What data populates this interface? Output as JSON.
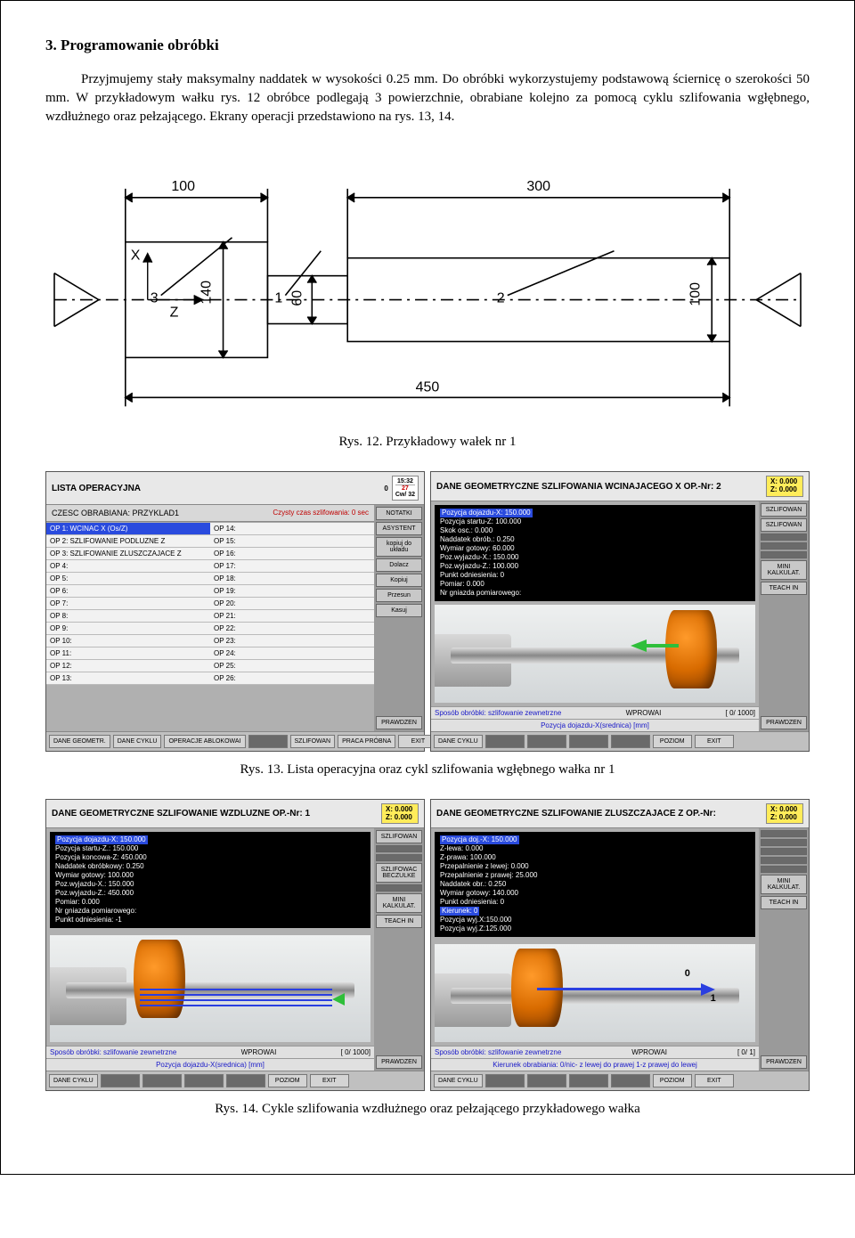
{
  "heading": "3. Programowanie obróbki",
  "paragraph": "Przyjmujemy stały maksymalny naddatek w wysokości 0.25 mm. Do obróbki wykorzystujemy podstawową ściernicę o szerokości 50 mm. W przykładowym wałku rys. 12 obróbce podlegają 3 powierzchnie, obrabiane kolejno za pomocą cyklu szlifowania wgłębnego, wzdłużnego oraz pełzającego. Ekrany operacji przedstawiono na rys. 13, 14.",
  "fig12": {
    "caption": "Rys. 12. Przykładowy wałek nr 1",
    "dims": {
      "L1": "100",
      "L2": "300",
      "D1": "140",
      "D2": "60",
      "D3": "100",
      "Ltotal": "450",
      "labels": [
        "1",
        "2",
        "3"
      ],
      "axes": [
        "X",
        "Z"
      ]
    },
    "stroke": "#000000"
  },
  "fig13": {
    "caption": "Rys. 13. Lista operacyjna oraz cykl szlifowania wgłębnego wałka nr 1",
    "left": {
      "title": "LISTA OPERACYJNA",
      "date_day": "27",
      "date_time": "15:32",
      "date_cw": "Cw/ 32",
      "part_label": "CZESC OBRABIANA: PRZYKLAD1",
      "red_note": "Czysty czas szlifowania: 0 sec",
      "ops_left": [
        "OP 1: WCINAC X (Os/Z)",
        "OP 2: SZLIFOWANIE PODLUZNE Z",
        "OP 3: SZLIFOWANIE ZLUSZCZAJACE Z",
        "OP 4:",
        "OP 5:",
        "OP 6:",
        "OP 7:",
        "OP 8:",
        "OP 9:",
        "OP 10:",
        "OP 11:",
        "OP 12:",
        "OP 13:"
      ],
      "ops_right": [
        "OP 14:",
        "OP 15:",
        "OP 16:",
        "OP 17:",
        "OP 18:",
        "OP 19:",
        "OP 20:",
        "OP 21:",
        "OP 22:",
        "OP 23:",
        "OP 24:",
        "OP 25:",
        "OP 26:"
      ],
      "side": [
        "NOTATKI",
        "ASYSTENT",
        "kopiuj do układu",
        "Dolacz",
        "Kopiuj",
        "Przesun",
        "Kasuj",
        "PRAWDZEN"
      ],
      "footer": [
        "DANE GEOMETR.",
        "DANE CYKLU",
        "OPERACJE ABLOKOWAI",
        "",
        "SZLIFOWAN",
        "PRACA PRÓBNA",
        "EXIT"
      ]
    },
    "right": {
      "title": "DANE GEOMETRYCZNE  SZLIFOWANIA WCINAJACEGO X OP.-Nr: 2",
      "coord": {
        "x": "X: 0.000",
        "z": "Z: 0.000"
      },
      "info": [
        "Pozycja dojazdu-X: 150.000",
        "Pozycja startu-Z: 100.000",
        "Skok osc.: 0.000",
        "Naddatek obrób.: 0.250",
        "Wymiar gotowy: 60.000",
        "Poz.wyjazdu-X.: 150.000",
        "Poz.wyjazdu-Z.: 100.000",
        "Punkt odniesienia:  0",
        "Pomiar: 0.000",
        "Nr gniazda pomiarowego:"
      ],
      "blue1": {
        "l": "Sposób obróbki: szlifowanie zewnetrzne",
        "m": "WPROWAI",
        "r": "[ 0/ 1000]"
      },
      "blue2": "Pozycja dojazdu-X(srednica) [mm]",
      "side": [
        "SZLIFOWAN",
        "SZLIFOWAN",
        "",
        "",
        "",
        "MINI KALKULAT.",
        "TEACH IN",
        "PRAWDZEN"
      ],
      "footer": [
        "DANE CYKLU",
        "",
        "",
        "",
        "",
        "POZIOM",
        "EXIT"
      ],
      "colors": {
        "wheel": "#e07a1a",
        "arrow": "#2fbf3a"
      }
    }
  },
  "fig14": {
    "caption": "Rys. 14. Cykle szlifowania wzdłużnego oraz pełzającego przykładowego wałka",
    "left": {
      "title": "DANE GEOMETRYCZNE  SZLIFOWANIE WZDLUZNE OP.-Nr: 1",
      "coord": {
        "x": "X: 0.000",
        "z": "Z: 0.000"
      },
      "info": [
        "Pozycja dojazdu-X: 150.000",
        "Pozycja startu-Z.: 150.000",
        "Pozycja koncowa-Z: 450.000",
        "Naddatek obróbkowy: 0.250",
        "Wymiar gotowy: 100.000",
        "Poz.wyjazdu-X.: 150.000",
        "Poz.wyjazdu-Z.: 450.000",
        "Pomiar: 0.000",
        "Nr gniazda pomiarowego:",
        "Punkt odniesienia: -1"
      ],
      "blue1": {
        "l": "Sposób obróbki: szlifowanie zewnetrzne",
        "m": "WPROWAI",
        "r": "[ 0/ 1000]"
      },
      "blue2": "Pozycja dojazdu-X(srednica) [mm]",
      "side": [
        "SZLIFOWAN",
        "",
        "",
        "SZLIFOWAC BECZULKE",
        "",
        "MINI KALKULAT.",
        "TEACH IN",
        "PRAWDZEN"
      ],
      "footer": [
        "DANE CYKLU",
        "",
        "",
        "",
        "",
        "POZIOM",
        "EXIT"
      ]
    },
    "right": {
      "title": "DANE GEOMETRYCZNE  SZLIFOWANIE  ZLUSZCZAJACE Z OP.-Nr:",
      "coord": {
        "x": "X: 0.000",
        "z": "Z: 0.000"
      },
      "info": [
        "Pozycja doj.-X: 150.000",
        "Z-lewa: 0.000",
        "Z-prawa: 100.000",
        "Przepalnienie z lewej: 0.000",
        "Przepalnienie z prawej: 25.000",
        "Naddatek obr.: 0.250",
        "Wymiar gotowy: 140.000",
        "Punkt odniesienia:  0",
        "Kierunek:  0",
        "Pozycja wyj.X:150.000",
        "Pozycja wyj.Z:125.000"
      ],
      "highlight_index": 8,
      "blue1": {
        "l": "Sposób obróbki: szlifowanie zewnetrzne",
        "m": "WPROWAI",
        "r": "[ 0/ 1]"
      },
      "blue2": "Kierunek obrabiania: 0/nic- z lewej do prawej   1-z prawej do lewej",
      "side": [
        "",
        "",
        "",
        "",
        "",
        "MINI KALKULAT.",
        "TEACH IN",
        "PRAWDZEN"
      ],
      "footer": [
        "DANE CYKLU",
        "",
        "",
        "",
        "",
        "POZIOM",
        "EXIT"
      ],
      "markers": [
        "0",
        "1"
      ]
    }
  }
}
